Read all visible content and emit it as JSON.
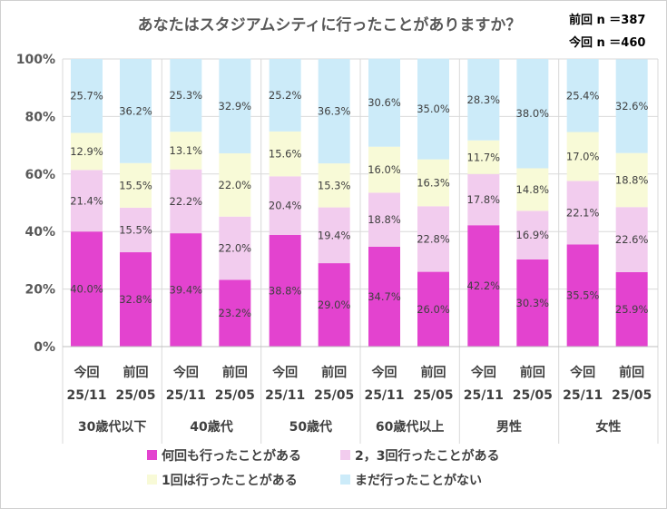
{
  "chart_data": {
    "type": "bar",
    "stacked": true,
    "title": "あなたはスタジアムシティに行ったことがありますか？",
    "notes": [
      "前回 n ＝387",
      "今回 n ＝460"
    ],
    "ylim": [
      0,
      100
    ],
    "yticks": [
      "0%",
      "20%",
      "40%",
      "60%",
      "80%",
      "100%"
    ],
    "groups": [
      "30歳代以下",
      "40歳代",
      "50歳代",
      "60歳代以上",
      "男性",
      "女性"
    ],
    "bar_labels": [
      [
        "今回",
        "25/11"
      ],
      [
        "前回",
        "25/05"
      ],
      [
        "今回",
        "25/11"
      ],
      [
        "前回",
        "25/05"
      ],
      [
        "今回",
        "25/11"
      ],
      [
        "前回",
        "25/05"
      ],
      [
        "今回",
        "25/11"
      ],
      [
        "前回",
        "25/05"
      ],
      [
        "今回",
        "25/11"
      ],
      [
        "前回",
        "25/05"
      ],
      [
        "今回",
        "25/11"
      ],
      [
        "前回",
        "25/05"
      ]
    ],
    "series": [
      {
        "name": "何回も行ったことがある",
        "color": "#e343cf",
        "values": [
          40.0,
          32.8,
          39.4,
          23.2,
          38.8,
          29.0,
          34.7,
          26.0,
          42.2,
          30.3,
          35.5,
          25.9
        ],
        "labels": [
          "40.0%",
          "32.8%",
          "39.4%",
          "23.2%",
          "38.8%",
          "29.0%",
          "34.7%",
          "26.0%",
          "42.2%",
          "30.3%",
          "35.5%",
          "25.9%"
        ]
      },
      {
        "name": "2，3回行ったことがある",
        "color": "#f2ccee",
        "values": [
          21.4,
          15.5,
          22.2,
          22.0,
          20.4,
          19.4,
          18.8,
          22.8,
          17.8,
          16.9,
          22.1,
          22.6
        ],
        "labels": [
          "21.4%",
          "15.5%",
          "22.2%",
          "22.0%",
          "20.4%",
          "19.4%",
          "18.8%",
          "22.8%",
          "17.8%",
          "16.9%",
          "22.1%",
          "22.6%"
        ]
      },
      {
        "name": "1回は行ったことがある",
        "color": "#f8fad7",
        "values": [
          12.9,
          15.5,
          13.1,
          22.0,
          15.6,
          15.3,
          16.0,
          16.3,
          11.7,
          14.8,
          17.0,
          18.8
        ],
        "labels": [
          "12.9%",
          "15.5%",
          "13.1%",
          "22.0%",
          "15.6%",
          "15.3%",
          "16.0%",
          "16.3%",
          "11.7%",
          "14.8%",
          "17.0%",
          "18.8%"
        ]
      },
      {
        "name": "まだ行ったことがない",
        "color": "#ccebf9",
        "values": [
          25.7,
          36.2,
          25.3,
          32.9,
          25.2,
          36.3,
          30.6,
          35.0,
          28.3,
          38.0,
          25.4,
          32.6
        ],
        "labels": [
          "25.7%",
          "36.2%",
          "25.3%",
          "32.9%",
          "25.2%",
          "36.3%",
          "30.6%",
          "35.0%",
          "28.3%",
          "38.0%",
          "25.4%",
          "32.6%"
        ]
      }
    ]
  }
}
